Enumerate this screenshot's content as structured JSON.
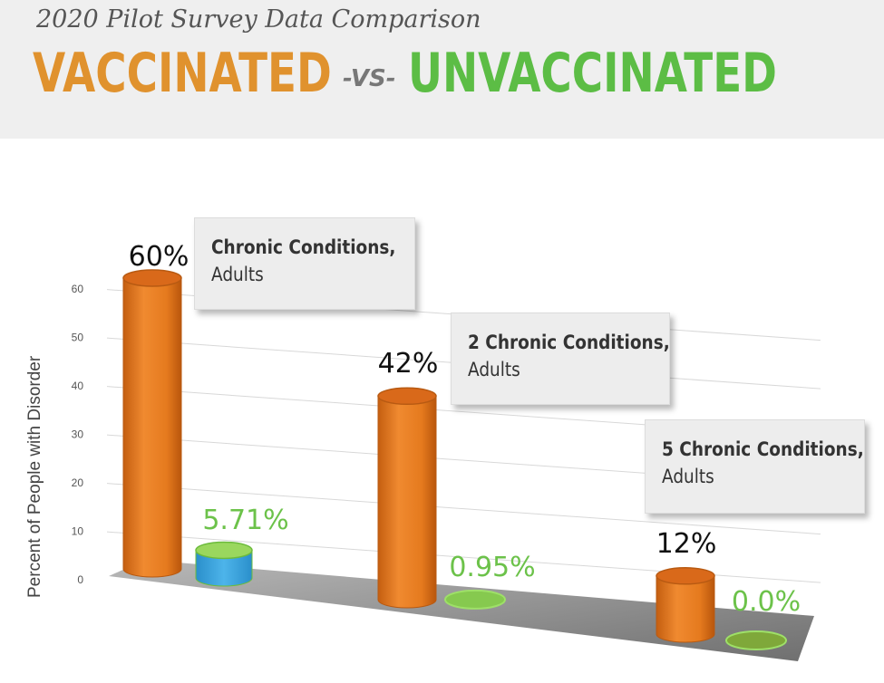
{
  "header": {
    "subtitle": "2020 Pilot Survey Data Comparison",
    "vaccinated": "VACCINATED",
    "vs": "-VS-",
    "unvaccinated": "UNVACCINATED"
  },
  "colors": {
    "vaccinated": "#e57b1e",
    "unvaccinated": "#74c24a",
    "unvaccinated_fill_first": "#3ba6e0",
    "header_bg": "#efefef"
  },
  "chart_data": {
    "type": "bar",
    "title": "",
    "xlabel": "",
    "ylabel": "Percent of People with Disorder",
    "ylim": [
      0,
      60
    ],
    "yticks": [
      0,
      10,
      20,
      30,
      40,
      50,
      60
    ],
    "grid": true,
    "categories": [
      "Chronic Conditions, Adults",
      "2 Chronic Conditions, Adults",
      "5 Chronic Conditions, Adults"
    ],
    "category_labels": [
      {
        "line1": "Chronic Conditions,",
        "line2": "Adults"
      },
      {
        "line1": "2 Chronic Conditions,",
        "line2": "Adults"
      },
      {
        "line1": "5 Chronic Conditions,",
        "line2": "Adults"
      }
    ],
    "series": [
      {
        "name": "VACCINATED",
        "values": [
          60,
          42,
          12
        ],
        "labels": [
          "60%",
          "42%",
          "12%"
        ]
      },
      {
        "name": "UNVACCINATED",
        "values": [
          5.71,
          0.95,
          0.0
        ],
        "labels": [
          "5.71%",
          "0.95%",
          "0.0%"
        ]
      }
    ]
  }
}
